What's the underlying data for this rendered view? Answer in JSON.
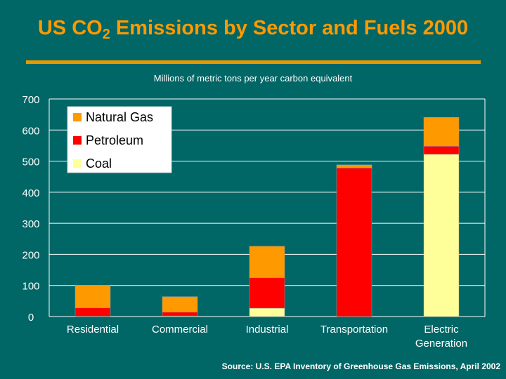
{
  "header": {
    "title_prefix": "US CO",
    "title_subscript": "2",
    "title_suffix": " Emissions by Sector and Fuels 2000"
  },
  "footer": {
    "source": "Source: U.S. EPA Inventory of Greenhouse Gas Emissions, April 2002"
  },
  "colors": {
    "background": "#006666",
    "title": "#ff9900",
    "natural_gas": "#ff9900",
    "petroleum": "#ff0000",
    "coal": "#ffff99",
    "grid": "#ffffff"
  },
  "chart_data": {
    "type": "bar",
    "stacked": true,
    "title": "US CO2 Emissions by Sector and Fuels 2000",
    "subtitle": "Millions of metric tons per year carbon equivalent",
    "xlabel": "",
    "ylabel": "",
    "ylim": [
      0,
      700
    ],
    "yticks": [
      0,
      100,
      200,
      300,
      400,
      500,
      600,
      700
    ],
    "grid": true,
    "legend_position": "top-left",
    "categories": [
      "Residential",
      "Commercial",
      "Industrial",
      "Transportation",
      "Electric Generation"
    ],
    "category_lines": [
      [
        "Residential"
      ],
      [
        "Commercial"
      ],
      [
        "Industrial"
      ],
      [
        "Transportation"
      ],
      [
        "Electric",
        "Generation"
      ]
    ],
    "series": [
      {
        "name": "Coal",
        "color": "#ffff99",
        "values": [
          1,
          2,
          27,
          0,
          522
        ]
      },
      {
        "name": "Petroleum",
        "color": "#ff0000",
        "values": [
          27,
          12,
          98,
          478,
          26
        ]
      },
      {
        "name": "Natural Gas",
        "color": "#ff9900",
        "values": [
          73,
          50,
          101,
          10,
          93
        ]
      }
    ],
    "legend_order": [
      "Natural Gas",
      "Petroleum",
      "Coal"
    ]
  }
}
